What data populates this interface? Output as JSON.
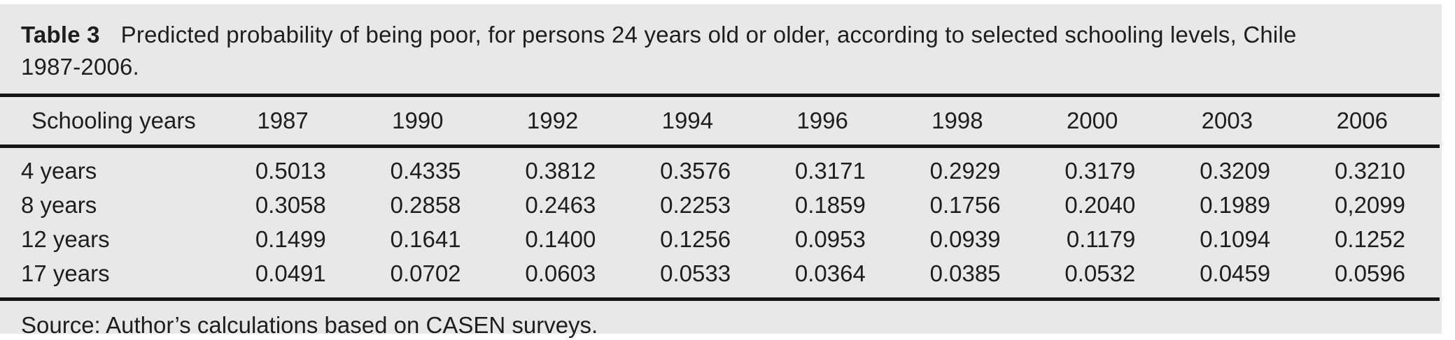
{
  "caption": {
    "label": "Table 3",
    "line1": "Predicted probability of being poor, for persons 24 years old or older, according to selected schooling levels, Chile",
    "line2": "1987-2006."
  },
  "table": {
    "columns": [
      "Schooling years",
      "1987",
      "1990",
      "1992",
      "1994",
      "1996",
      "1998",
      "2000",
      "2003",
      "2006"
    ],
    "rows": [
      {
        "label": "4 years",
        "values": [
          "0.5013",
          "0.4335",
          "0.3812",
          "0.3576",
          "0.3171",
          "0.2929",
          "0.3179",
          "0.3209",
          "0.3210"
        ]
      },
      {
        "label": "8 years",
        "values": [
          "0.3058",
          "0.2858",
          "0.2463",
          "0.2253",
          "0.1859",
          "0.1756",
          "0.2040",
          "0.1989",
          "0,2099"
        ]
      },
      {
        "label": "12 years",
        "values": [
          "0.1499",
          "0.1641",
          "0.1400",
          "0.1256",
          "0.0953",
          "0.0939",
          "0.1179",
          "0.1094",
          "0.1252"
        ]
      },
      {
        "label": "17 years",
        "values": [
          "0.0491",
          "0.0702",
          "0.0603",
          "0.0533",
          "0.0364",
          "0.0385",
          "0.0532",
          "0.0459",
          "0.0596"
        ]
      }
    ]
  },
  "source_note": "Source: Author’s calculations based on CASEN surveys.",
  "colors": {
    "panel_background": "#e8e8e9",
    "text": "#1e1e20",
    "rule": "#151515"
  }
}
